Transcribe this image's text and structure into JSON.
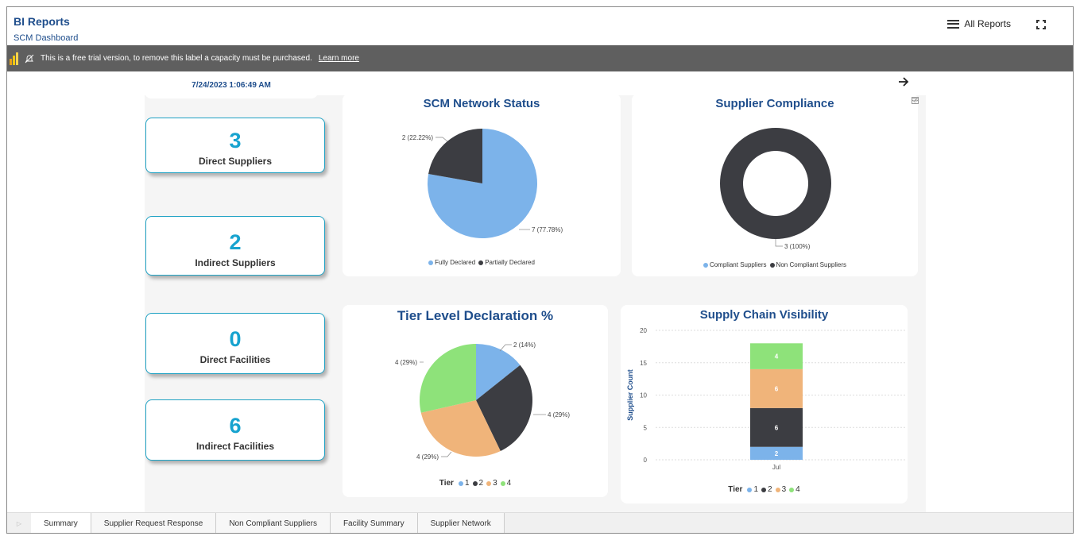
{
  "header": {
    "title": "BI Reports",
    "subtitle": "SCM Dashboard",
    "all_reports_label": "All Reports"
  },
  "trial_bar": {
    "message": "This is a free trial version, to remove this label a capacity must be purchased.",
    "link_label": "Learn more"
  },
  "timestamp": "7/24/2023 1:06:49 AM",
  "kpis": [
    {
      "value": "3",
      "label": "Direct Suppliers"
    },
    {
      "value": "2",
      "label": "Indirect Suppliers"
    },
    {
      "value": "0",
      "label": "Direct Facilities"
    },
    {
      "value": "6",
      "label": "Indirect Facilities"
    }
  ],
  "colors": {
    "light_blue": "#7cb3ea",
    "dark": "#3c3d42",
    "orange": "#f0b47a",
    "green": "#8ee27a",
    "title_blue": "#1f4e8c",
    "kpi_teal": "#17a3cf"
  },
  "tabs": [
    "Summary",
    "Supplier Request Response",
    "Non Compliant Suppliers",
    "Facility Summary",
    "Supplier Network"
  ],
  "chart_data": [
    {
      "type": "pie",
      "title": "SCM Network Status",
      "slices": [
        {
          "name": "Fully Declared",
          "value": 7,
          "label": "7 (77.78%)",
          "color": "#7cb3ea"
        },
        {
          "name": "Partially Declared",
          "value": 2,
          "label": "2 (22.22%)",
          "color": "#3c3d42"
        }
      ],
      "legend_position": "bottom"
    },
    {
      "type": "pie",
      "title": "Supplier Compliance",
      "donut": true,
      "slices": [
        {
          "name": "Compliant Suppliers",
          "value": 0,
          "label": "",
          "color": "#7cb3ea"
        },
        {
          "name": "Non Compliant Suppliers",
          "value": 3,
          "label": "3 (100%)",
          "color": "#3c3d42"
        }
      ],
      "legend_position": "bottom"
    },
    {
      "type": "pie",
      "title": "Tier Level Declaration %",
      "legend_title": "Tier",
      "slices": [
        {
          "name": "1",
          "value": 2,
          "label": "2 (14%)",
          "color": "#7cb3ea"
        },
        {
          "name": "2",
          "value": 4,
          "label": "4 (29%)",
          "color": "#3c3d42"
        },
        {
          "name": "3",
          "value": 4,
          "label": "4 (29%)",
          "color": "#f0b47a"
        },
        {
          "name": "4",
          "value": 4,
          "label": "4 (29%)",
          "color": "#8ee27a"
        }
      ],
      "legend_position": "bottom"
    },
    {
      "type": "bar",
      "stacked": true,
      "title": "Supply Chain Visibility",
      "ylabel": "Supplier Count",
      "categories": [
        "Jul"
      ],
      "ylim": [
        0,
        20
      ],
      "yticks": [
        0,
        5,
        10,
        15,
        20
      ],
      "legend_title": "Tier",
      "series": [
        {
          "name": "1",
          "values": [
            2
          ],
          "color": "#7cb3ea"
        },
        {
          "name": "2",
          "values": [
            6
          ],
          "color": "#3c3d42"
        },
        {
          "name": "3",
          "values": [
            6
          ],
          "color": "#f0b47a"
        },
        {
          "name": "4",
          "values": [
            4
          ],
          "color": "#8ee27a"
        }
      ],
      "grid": true,
      "legend_position": "bottom"
    }
  ]
}
